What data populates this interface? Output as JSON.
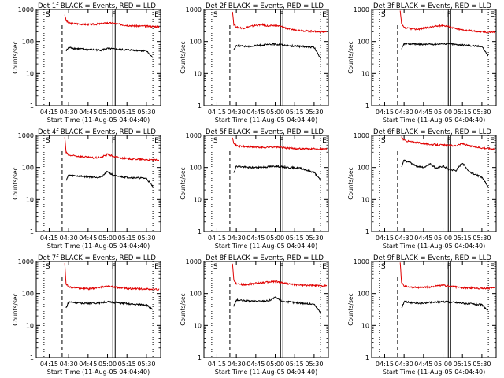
{
  "figure": {
    "ylabel": "Counts/sec",
    "xlabel": "Start Time (11-Aug-05 04:04:40)",
    "marker_labels": [
      "S",
      "F",
      "E"
    ]
  },
  "chart_data": [
    {
      "type": "line",
      "title": "Det 1f BLACK = Events, RED = LLD",
      "xlabel": "Start Time (11-Aug-05 04:04:40)",
      "ylabel": "Counts/sec",
      "y_scale": "log",
      "ylim": [
        1,
        1000
      ],
      "xlim": [
        "04:05",
        "05:41"
      ],
      "x_ticks": [
        "04:15",
        "04:30",
        "04:45",
        "05:00",
        "05:15",
        "05:30"
      ],
      "y_ticks": [
        "1",
        "10",
        "100",
        "1000"
      ],
      "series": [
        {
          "name": "LLD",
          "color": "#e00000",
          "x": [
            "04:27",
            "04:28",
            "04:30",
            "04:35",
            "04:40",
            "04:45",
            "04:50",
            "04:55",
            "05:00",
            "05:05",
            "05:10",
            "05:15",
            "05:20",
            "05:25",
            "05:30",
            "05:35",
            "05:40"
          ],
          "y": [
            700,
            450,
            380,
            360,
            350,
            340,
            345,
            360,
            380,
            370,
            340,
            320,
            310,
            305,
            300,
            295,
            290
          ]
        },
        {
          "name": "Events",
          "color": "#000000",
          "x": [
            "04:28",
            "04:30",
            "04:35",
            "04:40",
            "04:45",
            "04:50",
            "04:55",
            "05:00",
            "05:05",
            "05:10",
            "05:15",
            "05:20",
            "05:25",
            "05:30",
            "05:35"
          ],
          "y": [
            50,
            65,
            60,
            58,
            56,
            55,
            54,
            60,
            58,
            56,
            55,
            54,
            52,
            52,
            30
          ]
        }
      ],
      "markers": {
        "S": "04:11",
        "F": "05:05",
        "E": "05:35"
      }
    },
    {
      "type": "line",
      "title": "Det 2f BLACK = Events, RED = LLD",
      "xlabel": "Start Time (11-Aug-05 04:04:40)",
      "ylabel": "Counts/sec",
      "y_scale": "log",
      "ylim": [
        1,
        1000
      ],
      "xlim": [
        "04:05",
        "05:41"
      ],
      "x_ticks": [
        "04:15",
        "04:30",
        "04:45",
        "05:00",
        "05:15",
        "05:30"
      ],
      "y_ticks": [
        "1",
        "10",
        "100",
        "1000"
      ],
      "series": [
        {
          "name": "LLD",
          "color": "#e00000",
          "x": [
            "04:27",
            "04:28",
            "04:30",
            "04:35",
            "04:40",
            "04:45",
            "04:50",
            "04:55",
            "05:00",
            "05:05",
            "05:10",
            "05:15",
            "05:20",
            "05:25",
            "05:30",
            "05:35",
            "05:40"
          ],
          "y": [
            900,
            350,
            280,
            260,
            290,
            320,
            340,
            300,
            320,
            290,
            250,
            230,
            220,
            210,
            205,
            200,
            200
          ]
        },
        {
          "name": "Events",
          "color": "#000000",
          "x": [
            "04:28",
            "04:30",
            "04:35",
            "04:40",
            "04:45",
            "04:50",
            "04:55",
            "05:00",
            "05:05",
            "05:10",
            "05:15",
            "05:20",
            "05:25",
            "05:30",
            "05:35"
          ],
          "y": [
            55,
            75,
            72,
            70,
            74,
            78,
            80,
            82,
            80,
            74,
            72,
            70,
            68,
            65,
            30
          ]
        }
      ],
      "markers": {
        "S": "04:11",
        "F": "05:05",
        "E": "05:35"
      }
    },
    {
      "type": "line",
      "title": "Det 3f BLACK = Events, RED = LLD",
      "xlabel": "Start Time (11-Aug-05 04:04:40)",
      "ylabel": "Counts/sec",
      "y_scale": "log",
      "ylim": [
        1,
        1000
      ],
      "xlim": [
        "04:05",
        "05:41"
      ],
      "x_ticks": [
        "04:15",
        "04:30",
        "04:45",
        "05:00",
        "05:15",
        "05:30"
      ],
      "y_ticks": [
        "1",
        "10",
        "100",
        "1000"
      ],
      "series": [
        {
          "name": "LLD",
          "color": "#e00000",
          "x": [
            "04:27",
            "04:28",
            "04:30",
            "04:35",
            "04:40",
            "04:45",
            "04:50",
            "04:55",
            "05:00",
            "05:05",
            "05:10",
            "05:15",
            "05:20",
            "05:25",
            "05:30",
            "05:35",
            "05:40"
          ],
          "y": [
            900,
            350,
            270,
            250,
            240,
            260,
            280,
            300,
            320,
            290,
            250,
            230,
            220,
            210,
            200,
            195,
            200
          ]
        },
        {
          "name": "Events",
          "color": "#000000",
          "x": [
            "04:28",
            "04:30",
            "04:35",
            "04:40",
            "04:45",
            "04:50",
            "04:55",
            "05:00",
            "05:05",
            "05:10",
            "05:15",
            "05:20",
            "05:25",
            "05:30",
            "05:35"
          ],
          "y": [
            55,
            85,
            84,
            83,
            82,
            82,
            83,
            85,
            84,
            80,
            78,
            75,
            72,
            70,
            35
          ]
        }
      ],
      "markers": {
        "S": "04:11",
        "F": "05:05",
        "E": "05:35"
      }
    },
    {
      "type": "line",
      "title": "Det 4f BLACK = Events, RED = LLD",
      "xlabel": "Start Time (11-Aug-05 04:04:40)",
      "ylabel": "Counts/sec",
      "y_scale": "log",
      "ylim": [
        1,
        1000
      ],
      "xlim": [
        "04:05",
        "05:41"
      ],
      "x_ticks": [
        "04:15",
        "04:30",
        "04:45",
        "05:00",
        "05:15",
        "05:30"
      ],
      "y_ticks": [
        "1",
        "10",
        "100",
        "1000"
      ],
      "series": [
        {
          "name": "LLD",
          "color": "#e00000",
          "x": [
            "04:27",
            "04:28",
            "04:30",
            "04:35",
            "04:40",
            "04:45",
            "04:50",
            "04:55",
            "05:00",
            "05:05",
            "05:10",
            "05:15",
            "05:20",
            "05:25",
            "05:30",
            "05:35",
            "05:40"
          ],
          "y": [
            900,
            300,
            240,
            230,
            220,
            210,
            200,
            210,
            260,
            220,
            200,
            190,
            185,
            180,
            175,
            172,
            170
          ]
        },
        {
          "name": "Events",
          "color": "#000000",
          "x": [
            "04:28",
            "04:30",
            "04:35",
            "04:40",
            "04:45",
            "04:50",
            "04:55",
            "05:00",
            "05:05",
            "05:10",
            "05:15",
            "05:20",
            "05:25",
            "05:30",
            "05:35"
          ],
          "y": [
            40,
            58,
            55,
            53,
            52,
            50,
            50,
            75,
            55,
            52,
            50,
            48,
            47,
            46,
            25
          ]
        }
      ],
      "markers": {
        "S": "04:11",
        "F": "05:05",
        "E": "05:35"
      }
    },
    {
      "type": "line",
      "title": "Det 5f BLACK = Events, RED = LLD",
      "xlabel": "Start Time (11-Aug-05 04:04:40)",
      "ylabel": "Counts/sec",
      "y_scale": "log",
      "ylim": [
        1,
        1000
      ],
      "xlim": [
        "04:05",
        "05:41"
      ],
      "x_ticks": [
        "04:15",
        "04:30",
        "04:45",
        "05:00",
        "05:15",
        "05:30"
      ],
      "y_ticks": [
        "1",
        "10",
        "100",
        "1000"
      ],
      "series": [
        {
          "name": "LLD",
          "color": "#e00000",
          "x": [
            "04:27",
            "04:28",
            "04:30",
            "04:35",
            "04:40",
            "04:45",
            "04:50",
            "04:55",
            "05:00",
            "05:05",
            "05:10",
            "05:15",
            "05:20",
            "05:25",
            "05:30",
            "05:35",
            "05:40"
          ],
          "y": [
            900,
            600,
            480,
            450,
            440,
            430,
            420,
            430,
            440,
            420,
            400,
            390,
            385,
            380,
            380,
            375,
            380
          ]
        },
        {
          "name": "Events",
          "color": "#000000",
          "x": [
            "04:28",
            "04:30",
            "04:35",
            "04:40",
            "04:45",
            "04:50",
            "04:55",
            "05:00",
            "05:05",
            "05:10",
            "05:15",
            "05:20",
            "05:25",
            "05:30",
            "05:35"
          ],
          "y": [
            70,
            110,
            105,
            100,
            100,
            102,
            105,
            110,
            105,
            100,
            98,
            95,
            80,
            70,
            40
          ]
        }
      ],
      "markers": {
        "S": "04:11",
        "F": "05:05",
        "E": "05:35"
      }
    },
    {
      "type": "line",
      "title": "Det 6f BLACK = Events, RED = LLD",
      "xlabel": "Start Time (11-Aug-05 04:04:40)",
      "ylabel": "Counts/sec",
      "y_scale": "log",
      "ylim": [
        1,
        1000
      ],
      "xlim": [
        "04:05",
        "05:41"
      ],
      "x_ticks": [
        "04:15",
        "04:30",
        "04:45",
        "05:00",
        "05:15",
        "05:30"
      ],
      "y_ticks": [
        "1",
        "10",
        "100",
        "1000"
      ],
      "series": [
        {
          "name": "LLD",
          "color": "#e00000",
          "x": [
            "04:28",
            "04:30",
            "04:35",
            "04:40",
            "04:45",
            "04:50",
            "04:55",
            "05:00",
            "05:05",
            "05:10",
            "05:15",
            "05:20",
            "05:25",
            "05:30",
            "05:35",
            "05:40"
          ],
          "y": [
            900,
            700,
            640,
            600,
            560,
            530,
            510,
            500,
            490,
            480,
            560,
            470,
            440,
            410,
            390,
            380
          ]
        },
        {
          "name": "Events",
          "color": "#000000",
          "x": [
            "04:28",
            "04:30",
            "04:35",
            "04:40",
            "04:45",
            "04:50",
            "04:55",
            "05:00",
            "05:05",
            "05:10",
            "05:15",
            "05:20",
            "05:25",
            "05:30",
            "05:35"
          ],
          "y": [
            100,
            170,
            140,
            110,
            100,
            130,
            95,
            110,
            85,
            80,
            140,
            75,
            60,
            50,
            25
          ]
        }
      ],
      "markers": {
        "S": "04:11",
        "F": "05:05",
        "E": "05:35"
      }
    },
    {
      "type": "line",
      "title": "Det 7f BLACK = Events, RED = LLD",
      "xlabel": "Start Time (11-Aug-05 04:04:40)",
      "ylabel": "Counts/sec",
      "y_scale": "log",
      "ylim": [
        1,
        1000
      ],
      "xlim": [
        "04:05",
        "05:41"
      ],
      "x_ticks": [
        "04:15",
        "04:30",
        "04:45",
        "05:00",
        "05:15",
        "05:30"
      ],
      "y_ticks": [
        "1",
        "10",
        "100",
        "1000"
      ],
      "series": [
        {
          "name": "LLD",
          "color": "#e00000",
          "x": [
            "04:27",
            "04:28",
            "04:30",
            "04:35",
            "04:40",
            "04:45",
            "04:50",
            "04:55",
            "05:00",
            "05:05",
            "05:10",
            "05:15",
            "05:20",
            "05:25",
            "05:30",
            "05:35",
            "05:40"
          ],
          "y": [
            900,
            200,
            160,
            150,
            145,
            140,
            145,
            160,
            170,
            160,
            150,
            145,
            140,
            140,
            138,
            135,
            135
          ]
        },
        {
          "name": "Events",
          "color": "#000000",
          "x": [
            "04:28",
            "04:30",
            "04:35",
            "04:40",
            "04:45",
            "04:50",
            "04:55",
            "05:00",
            "05:05",
            "05:10",
            "05:15",
            "05:20",
            "05:25",
            "05:30",
            "05:35"
          ],
          "y": [
            35,
            55,
            52,
            50,
            50,
            50,
            52,
            55,
            53,
            50,
            48,
            46,
            45,
            45,
            30
          ]
        }
      ],
      "markers": {
        "S": "04:11",
        "F": "05:05",
        "E": "05:35"
      }
    },
    {
      "type": "line",
      "title": "Det 8f BLACK = Events, RED = LLD",
      "xlabel": "Start Time (11-Aug-05 04:04:40)",
      "ylabel": "Counts/sec",
      "y_scale": "log",
      "ylim": [
        1,
        1000
      ],
      "xlim": [
        "04:05",
        "05:41"
      ],
      "x_ticks": [
        "04:15",
        "04:30",
        "04:45",
        "05:00",
        "05:15",
        "05:30"
      ],
      "y_ticks": [
        "1",
        "10",
        "100",
        "1000"
      ],
      "series": [
        {
          "name": "LLD",
          "color": "#e00000",
          "x": [
            "04:27",
            "04:28",
            "04:30",
            "04:35",
            "04:40",
            "04:45",
            "04:50",
            "04:55",
            "05:00",
            "05:05",
            "05:10",
            "05:15",
            "05:20",
            "05:25",
            "05:30",
            "05:35",
            "05:40"
          ],
          "y": [
            900,
            260,
            200,
            190,
            195,
            210,
            220,
            230,
            240,
            220,
            200,
            190,
            185,
            180,
            178,
            175,
            175
          ]
        },
        {
          "name": "Events",
          "color": "#000000",
          "x": [
            "04:28",
            "04:30",
            "04:35",
            "04:40",
            "04:45",
            "04:50",
            "04:55",
            "05:00",
            "05:05",
            "05:10",
            "05:15",
            "05:20",
            "05:25",
            "05:30",
            "05:35"
          ],
          "y": [
            40,
            62,
            60,
            58,
            58,
            58,
            60,
            75,
            58,
            55,
            52,
            50,
            48,
            46,
            25
          ]
        }
      ],
      "markers": {
        "S": "04:11",
        "F": "05:05",
        "E": "05:35"
      }
    },
    {
      "type": "line",
      "title": "Det 9f BLACK = Events, RED = LLD",
      "xlabel": "Start Time (11-Aug-05 04:04:40)",
      "ylabel": "Counts/sec",
      "y_scale": "log",
      "ylim": [
        1,
        1000
      ],
      "xlim": [
        "04:05",
        "05:41"
      ],
      "x_ticks": [
        "04:15",
        "04:30",
        "04:45",
        "05:00",
        "05:15",
        "05:30"
      ],
      "y_ticks": [
        "1",
        "10",
        "100",
        "1000"
      ],
      "series": [
        {
          "name": "LLD",
          "color": "#e00000",
          "x": [
            "04:27",
            "04:28",
            "04:30",
            "04:35",
            "04:40",
            "04:45",
            "04:50",
            "04:55",
            "05:00",
            "05:05",
            "05:10",
            "05:15",
            "05:20",
            "05:25",
            "05:30",
            "05:35",
            "05:40"
          ],
          "y": [
            900,
            220,
            170,
            160,
            155,
            155,
            160,
            170,
            180,
            170,
            160,
            150,
            150,
            148,
            145,
            145,
            148
          ]
        },
        {
          "name": "Events",
          "color": "#000000",
          "x": [
            "04:28",
            "04:30",
            "04:35",
            "04:40",
            "04:45",
            "04:50",
            "04:55",
            "05:00",
            "05:05",
            "05:10",
            "05:15",
            "05:20",
            "05:25",
            "05:30",
            "05:35"
          ],
          "y": [
            35,
            55,
            52,
            50,
            50,
            52,
            54,
            56,
            54,
            52,
            50,
            48,
            46,
            44,
            28
          ]
        }
      ],
      "markers": {
        "S": "04:11",
        "F": "05:05",
        "E": "05:35"
      }
    }
  ]
}
